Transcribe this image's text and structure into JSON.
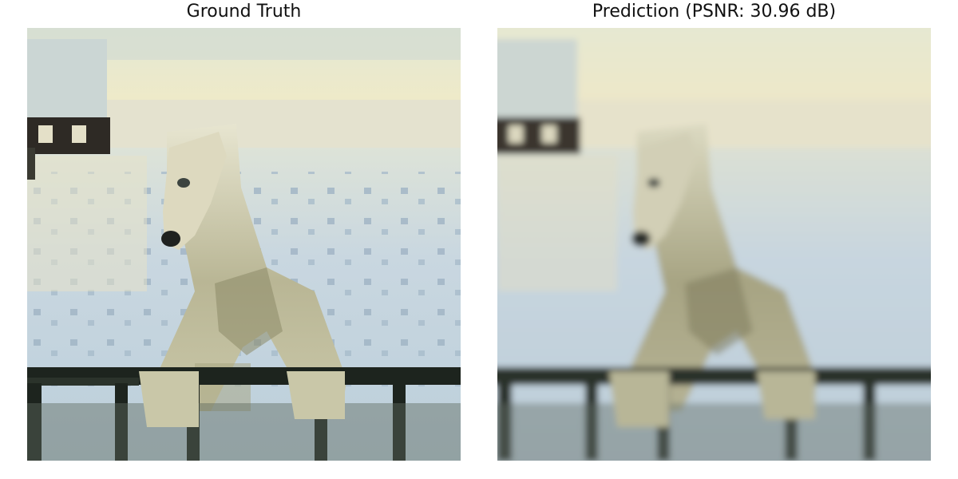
{
  "panels": [
    {
      "title": "Ground Truth",
      "variant": "sharp"
    },
    {
      "title": "Prediction (PSNR: 30.96 dB)",
      "variant": "blurred"
    }
  ],
  "scene": {
    "subject": "polar-bear",
    "colors": {
      "sky_top": "#e9ecd6",
      "sky_horizon": "#f0e9c8",
      "snow_far": "#d8dfd6",
      "snow_near": "#c4d4df",
      "snow_shadow": "#a9bccb",
      "bear_light": "#e6e4cf",
      "bear_mid": "#c6c3a3",
      "bear_shadow": "#8d8a68",
      "bear_dark": "#5c5a44",
      "nose": "#1f2220",
      "rail": "#1d241e",
      "hut_wall": "#2e2a25",
      "hut_snow": "#cbd6d4"
    }
  }
}
